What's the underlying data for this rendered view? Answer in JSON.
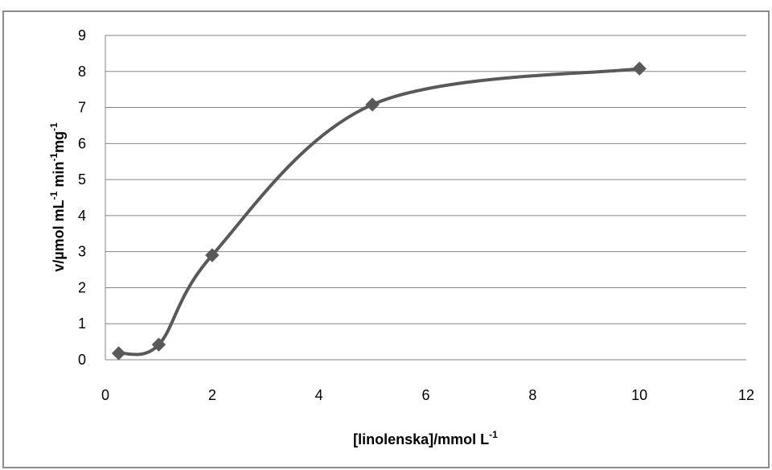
{
  "chart_data": {
    "type": "scatter",
    "title": "",
    "xlabel": "[linolenska]/mmol L",
    "xlabel_sup": "-1",
    "ylabel_parts": [
      {
        "text": "v/µmol mL",
        "sup": false
      },
      {
        "text": "-1",
        "sup": true
      },
      {
        "text": " min",
        "sup": false
      },
      {
        "text": "-1",
        "sup": true
      },
      {
        "text": "mg",
        "sup": false
      },
      {
        "text": "-1",
        "sup": true
      }
    ],
    "xlim": [
      0,
      12
    ],
    "ylim": [
      0,
      9
    ],
    "x_ticks": [
      0,
      2,
      4,
      6,
      8,
      10,
      12
    ],
    "y_ticks": [
      0,
      1,
      2,
      3,
      4,
      5,
      6,
      7,
      8,
      9
    ],
    "grid": "horizontal",
    "smooth_line": true,
    "legend": "none",
    "series": [
      {
        "x": [
          0.25,
          1,
          2,
          5,
          10
        ],
        "y": [
          0.18,
          0.42,
          2.9,
          7.08,
          8.08
        ]
      }
    ],
    "colors": {
      "series": "#595959",
      "grid": "#868686",
      "axis": "#868686",
      "frame": "#8c8c8c"
    }
  }
}
